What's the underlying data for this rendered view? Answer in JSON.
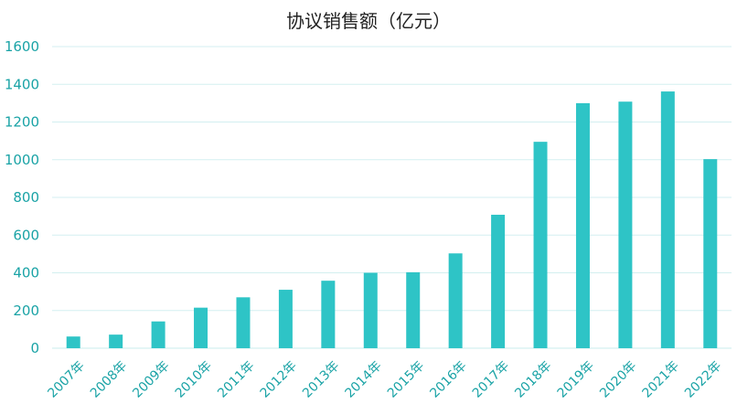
{
  "colors": {
    "bar": "#2ec4c6",
    "tick_text": "#1aa3a6",
    "grid": "#d3eff0",
    "title": "#222222"
  },
  "chart_data": {
    "type": "bar",
    "title": "协议销售额（亿元）",
    "xlabel": "",
    "ylabel": "",
    "categories": [
      "2007年",
      "2008年",
      "2009年",
      "2010年",
      "2011年",
      "2012年",
      "2013年",
      "2014年",
      "2015年",
      "2016年",
      "2017年",
      "2018年",
      "2019年",
      "2020年",
      "2021年",
      "2022年"
    ],
    "values": [
      62,
      72,
      142,
      215,
      270,
      310,
      358,
      400,
      403,
      503,
      708,
      1095,
      1300,
      1308,
      1362,
      1003
    ],
    "ylim": [
      0,
      1600
    ],
    "yticks": [
      "0",
      "200",
      "400",
      "600",
      "800",
      "1000",
      "1200",
      "1400",
      "1600"
    ],
    "grid": true,
    "legend": "none"
  }
}
